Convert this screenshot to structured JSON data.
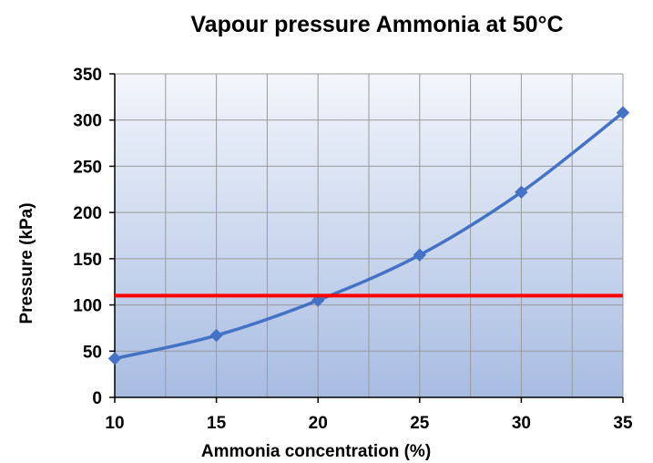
{
  "chart_data": {
    "type": "line",
    "title": "Vapour pressure Ammonia at 50°C",
    "xlabel": "Ammonia concentration (%)",
    "ylabel": "Pressure (kPa)",
    "xlim": [
      10,
      35
    ],
    "ylim": [
      0,
      350
    ],
    "xticks": [
      10,
      15,
      20,
      25,
      30,
      35
    ],
    "yticks": [
      0,
      50,
      100,
      150,
      200,
      250,
      300,
      350
    ],
    "x_minor_gridlines": [
      12.5,
      17.5,
      22.5,
      27.5,
      32.5
    ],
    "grid": true,
    "legend": "none",
    "series": [
      {
        "x": [
          10,
          15,
          20,
          25,
          30,
          35
        ],
        "y": [
          42,
          67,
          105,
          154,
          222,
          308
        ],
        "color": "#4472C4",
        "marker": "diamond",
        "smooth": true
      }
    ],
    "reference_line": {
      "y": 110,
      "color": "#FF0000"
    },
    "plot_background": {
      "top": "#F3F6FB",
      "bottom": "#A7BCE2"
    }
  }
}
